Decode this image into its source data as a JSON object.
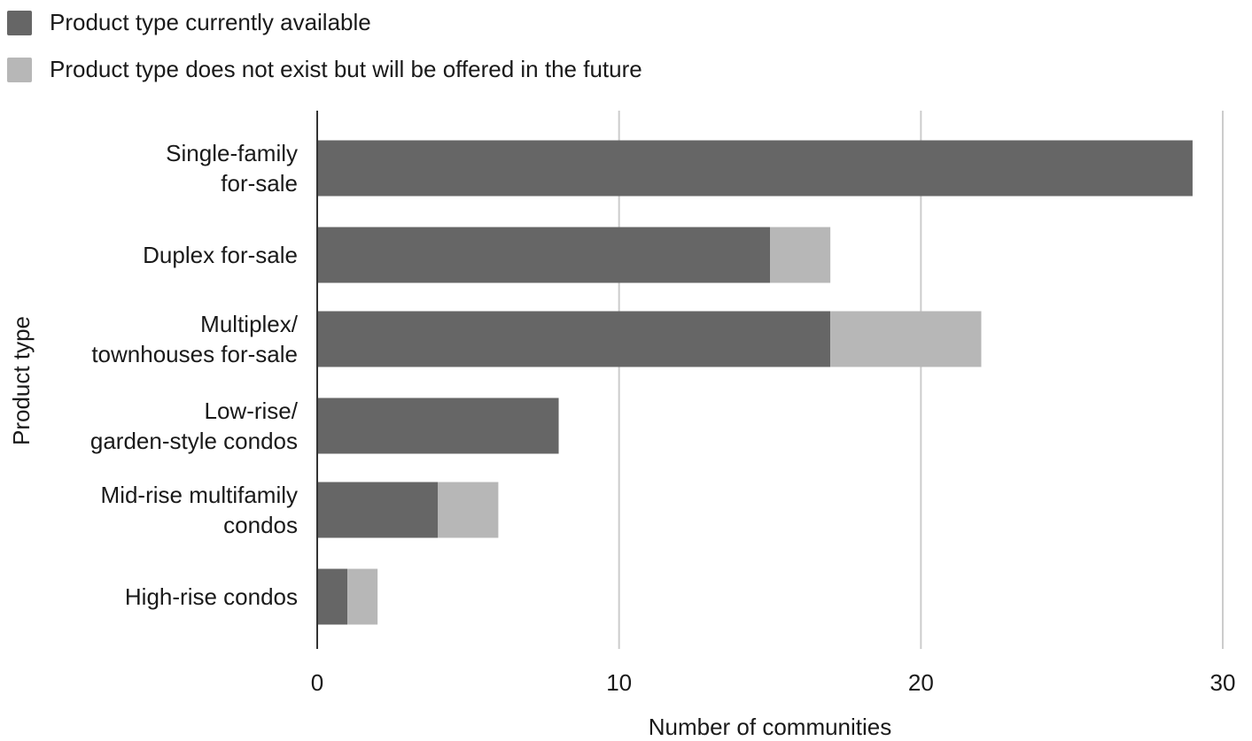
{
  "legend": [
    {
      "label": "Product type currently available",
      "color": "#666666"
    },
    {
      "label": "Product type does not exist but will be offered in the future",
      "color": "#b7b7b7"
    }
  ],
  "chart_data": {
    "type": "bar",
    "orientation": "horizontal",
    "stacked": true,
    "xlabel": "Number of communities",
    "ylabel": "Product type",
    "xlim": [
      0,
      30
    ],
    "xticks": [
      0,
      10,
      20,
      30
    ],
    "grid": "vertical",
    "legend_position": "top-left",
    "categories": [
      [
        "Single-family",
        "for-sale"
      ],
      [
        "Duplex for-sale"
      ],
      [
        "Multiplex/",
        "townhouses for-sale"
      ],
      [
        "Low-rise/",
        "garden-style condos"
      ],
      [
        "Mid-rise multifamily",
        "condos"
      ],
      [
        "High-rise condos"
      ]
    ],
    "series": [
      {
        "name": "Product type currently available",
        "color": "#666666",
        "values": [
          29,
          15,
          17,
          8,
          4,
          1
        ]
      },
      {
        "name": "Product type does not exist but will be offered in the future",
        "color": "#b7b7b7",
        "values": [
          0,
          2,
          5,
          0,
          2,
          1
        ]
      }
    ]
  }
}
